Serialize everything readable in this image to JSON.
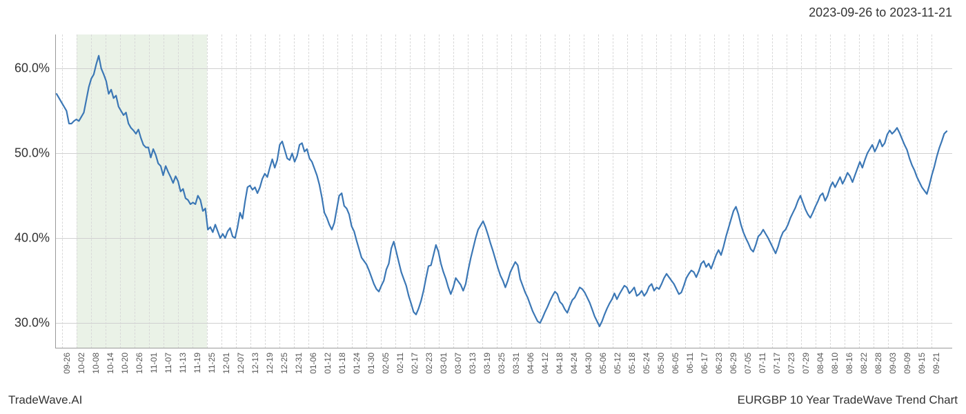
{
  "header": {
    "date_range": "2023-09-26 to 2023-11-21"
  },
  "footer": {
    "left": "TradeWave.AI",
    "right": "EURGBP 10 Year TradeWave Trend Chart"
  },
  "chart": {
    "type": "line",
    "background_color": "#ffffff",
    "grid_color_h": "#d0d0d0",
    "grid_color_v": "#d8d8d8",
    "axis_color": "#999999",
    "line_color": "#3b77b5",
    "line_width": 2.2,
    "label_fontsize": 18,
    "xlabel_fontsize": 12,
    "text_color": "#333333",
    "highlight_band": {
      "color": "#d9e8d4",
      "opacity": 0.55,
      "x_start_index": 3,
      "x_end_index": 12
    },
    "ylim": [
      27,
      64
    ],
    "yticks": [
      30,
      40,
      50,
      60
    ],
    "ytick_labels": [
      "30.0%",
      "40.0%",
      "50.0%",
      "60.0%"
    ],
    "xtick_labels": [
      "09-26",
      "10-02",
      "10-08",
      "10-14",
      "10-20",
      "10-26",
      "11-01",
      "11-07",
      "11-13",
      "11-19",
      "11-25",
      "12-01",
      "12-07",
      "12-13",
      "12-19",
      "12-25",
      "12-31",
      "01-06",
      "01-12",
      "01-18",
      "01-24",
      "01-30",
      "02-05",
      "02-11",
      "02-17",
      "02-23",
      "03-01",
      "03-07",
      "03-13",
      "03-19",
      "03-25",
      "03-31",
      "04-06",
      "04-12",
      "04-18",
      "04-24",
      "04-30",
      "05-06",
      "05-12",
      "05-18",
      "05-24",
      "05-30",
      "06-05",
      "06-11",
      "06-17",
      "06-23",
      "06-29",
      "07-05",
      "07-11",
      "07-17",
      "07-23",
      "07-29",
      "08-04",
      "08-10",
      "08-16",
      "08-22",
      "08-28",
      "09-03",
      "09-09",
      "09-15",
      "09-21"
    ],
    "series": {
      "values": [
        57.0,
        56.5,
        56.0,
        55.5,
        55.0,
        53.5,
        53.5,
        53.8,
        54.0,
        53.8,
        54.3,
        54.8,
        56.3,
        57.8,
        58.8,
        59.3,
        60.5,
        61.5,
        60.0,
        59.3,
        58.5,
        57.0,
        57.5,
        56.5,
        56.8,
        55.5,
        55.0,
        54.5,
        54.8,
        53.5,
        53.0,
        52.7,
        52.3,
        52.8,
        51.8,
        51.0,
        50.7,
        50.7,
        49.5,
        50.5,
        49.8,
        48.8,
        48.5,
        47.4,
        48.5,
        47.8,
        47.2,
        46.5,
        47.3,
        46.7,
        45.5,
        45.8,
        44.7,
        44.5,
        44.0,
        44.2,
        44.0,
        45.0,
        44.5,
        43.2,
        43.5,
        41.0,
        41.3,
        40.7,
        41.6,
        40.8,
        40.0,
        40.5,
        40.0,
        40.8,
        41.2,
        40.2,
        40.0,
        41.3,
        43.0,
        42.3,
        44.3,
        46.0,
        46.2,
        45.7,
        46.0,
        45.3,
        46.0,
        47.0,
        47.6,
        47.2,
        48.3,
        49.3,
        48.3,
        49.2,
        51.0,
        51.4,
        50.4,
        49.4,
        49.2,
        50.0,
        49.0,
        49.7,
        51.0,
        51.2,
        50.2,
        50.5,
        49.4,
        49.0,
        48.2,
        47.4,
        46.3,
        44.8,
        43.0,
        42.4,
        41.6,
        41.0,
        41.8,
        43.4,
        45.0,
        45.3,
        43.8,
        43.5,
        42.8,
        41.4,
        40.8,
        39.7,
        38.7,
        37.7,
        37.3,
        36.9,
        36.2,
        35.4,
        34.6,
        34.0,
        33.7,
        34.4,
        35.0,
        36.3,
        37.0,
        38.8,
        39.6,
        38.4,
        37.2,
        36.0,
        35.2,
        34.4,
        33.2,
        32.3,
        31.3,
        31.0,
        31.7,
        32.6,
        33.8,
        35.3,
        36.7,
        36.8,
        38.0,
        39.2,
        38.4,
        37.0,
        36.0,
        35.2,
        34.2,
        33.4,
        34.2,
        35.3,
        34.9,
        34.5,
        33.8,
        34.6,
        36.2,
        37.6,
        38.8,
        40.0,
        41.0,
        41.5,
        42.0,
        41.3,
        40.4,
        39.4,
        38.5,
        37.5,
        36.5,
        35.6,
        35.0,
        34.2,
        35.0,
        36.0,
        36.6,
        37.2,
        36.8,
        35.2,
        34.4,
        33.6,
        33.0,
        32.2,
        31.4,
        30.8,
        30.2,
        30.0,
        30.6,
        31.3,
        31.9,
        32.6,
        33.2,
        33.7,
        33.4,
        32.5,
        32.2,
        31.6,
        31.2,
        32.0,
        32.7,
        33.0,
        33.6,
        34.2,
        34.0,
        33.6,
        33.0,
        32.4,
        31.6,
        30.8,
        30.2,
        29.6,
        30.2,
        31.0,
        31.7,
        32.3,
        32.8,
        33.5,
        32.8,
        33.4,
        33.9,
        34.4,
        34.2,
        33.5,
        33.8,
        34.2,
        33.2,
        33.4,
        33.8,
        33.2,
        33.6,
        34.3,
        34.6,
        33.8,
        34.2,
        34.0,
        34.6,
        35.3,
        35.8,
        35.4,
        35.0,
        34.6,
        34.0,
        33.4,
        33.6,
        34.4,
        35.3,
        35.8,
        36.2,
        36.0,
        35.4,
        36.1,
        37.0,
        37.3,
        36.6,
        37.0,
        36.4,
        37.2,
        38.0,
        38.6,
        38.0,
        39.0,
        40.2,
        41.2,
        42.2,
        43.2,
        43.7,
        42.8,
        41.6,
        40.7,
        40.0,
        39.4,
        38.7,
        38.4,
        39.2,
        40.2,
        40.5,
        41.0,
        40.5,
        40.0,
        39.4,
        38.8,
        38.2,
        39.0,
        40.0,
        40.7,
        41.0,
        41.6,
        42.4,
        43.0,
        43.6,
        44.4,
        45.0,
        44.2,
        43.4,
        42.8,
        42.4,
        43.0,
        43.7,
        44.3,
        45.0,
        45.3,
        44.4,
        45.0,
        46.0,
        46.6,
        46.0,
        46.6,
        47.2,
        46.4,
        47.0,
        47.7,
        47.3,
        46.6,
        47.4,
        48.2,
        49.0,
        48.3,
        49.2,
        50.0,
        50.5,
        51.0,
        50.2,
        50.8,
        51.6,
        50.8,
        51.2,
        52.2,
        52.7,
        52.3,
        52.6,
        53.0,
        52.4,
        51.7,
        51.0,
        50.4,
        49.4,
        48.6,
        48.0,
        47.2,
        46.6,
        46.0,
        45.6,
        45.2,
        46.2,
        47.4,
        48.4,
        49.6,
        50.6,
        51.4,
        52.3,
        52.6
      ]
    }
  }
}
